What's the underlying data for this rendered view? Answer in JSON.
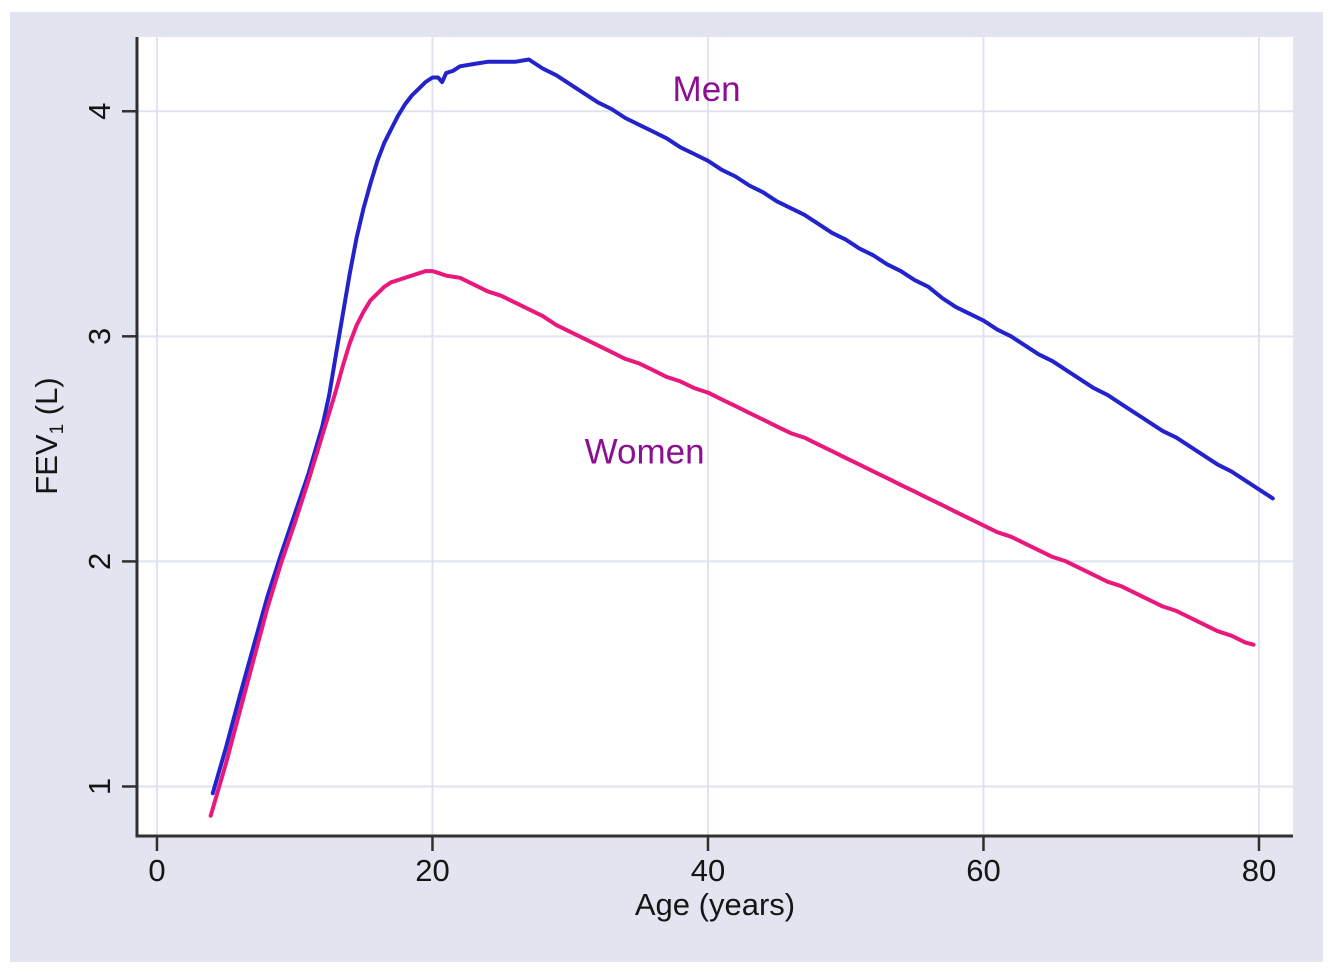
{
  "figure": {
    "page_background": "#ffffff",
    "canvas_color": "#e2e5ef",
    "plot_background": "#ffffff",
    "grid_color": "#dfe3ef",
    "axis_color": "#303030",
    "tick_text_color": "#151515",
    "annotation_color": "#8c0f92"
  },
  "chart_data": {
    "type": "line",
    "title": "",
    "xlabel": "Age (years)",
    "ylabel": "FEV1 (L)",
    "ylabel_rich": {
      "base": "FEV",
      "subscript": "1",
      "rest": " (L)"
    },
    "xlim": [
      -1.45,
      82.47
    ],
    "ylim": [
      0.78,
      4.33
    ],
    "xticks": [
      0,
      20,
      40,
      60,
      80
    ],
    "yticks": [
      1,
      2,
      3,
      4
    ],
    "grid": "both",
    "legend_position": "inline-annotations",
    "annotations": [
      {
        "label": "Men",
        "x": 39.9,
        "y": 4.1
      },
      {
        "label": "Women",
        "x": 35.4,
        "y": 2.49
      }
    ],
    "series": [
      {
        "name": "Men",
        "color": "#2323cc",
        "points": [
          [
            4.05,
            0.97
          ],
          [
            5,
            1.17
          ],
          [
            6,
            1.4
          ],
          [
            7,
            1.62
          ],
          [
            8,
            1.84
          ],
          [
            9,
            2.03
          ],
          [
            10,
            2.21
          ],
          [
            11,
            2.39
          ],
          [
            12,
            2.6
          ],
          [
            12.5,
            2.74
          ],
          [
            13,
            2.92
          ],
          [
            13.5,
            3.1
          ],
          [
            14,
            3.28
          ],
          [
            14.5,
            3.44
          ],
          [
            15,
            3.57
          ],
          [
            15.5,
            3.68
          ],
          [
            16,
            3.78
          ],
          [
            16.5,
            3.86
          ],
          [
            17,
            3.92
          ],
          [
            17.5,
            3.98
          ],
          [
            18,
            4.03
          ],
          [
            18.5,
            4.07
          ],
          [
            19,
            4.1
          ],
          [
            19.5,
            4.13
          ],
          [
            20,
            4.15
          ],
          [
            20.4,
            4.15
          ],
          [
            20.7,
            4.13
          ],
          [
            21,
            4.17
          ],
          [
            21.5,
            4.18
          ],
          [
            22,
            4.2
          ],
          [
            23,
            4.21
          ],
          [
            24,
            4.22
          ],
          [
            25,
            4.22
          ],
          [
            26,
            4.22
          ],
          [
            27,
            4.23
          ],
          [
            28,
            4.19
          ],
          [
            29,
            4.16
          ],
          [
            30,
            4.12
          ],
          [
            31,
            4.08
          ],
          [
            32,
            4.04
          ],
          [
            33,
            4.01
          ],
          [
            34,
            3.97
          ],
          [
            35,
            3.94
          ],
          [
            36,
            3.91
          ],
          [
            37,
            3.88
          ],
          [
            38,
            3.84
          ],
          [
            39,
            3.81
          ],
          [
            40,
            3.78
          ],
          [
            41,
            3.74
          ],
          [
            42,
            3.71
          ],
          [
            43,
            3.67
          ],
          [
            44,
            3.64
          ],
          [
            45,
            3.6
          ],
          [
            46,
            3.57
          ],
          [
            47,
            3.54
          ],
          [
            48,
            3.5
          ],
          [
            49,
            3.46
          ],
          [
            50,
            3.43
          ],
          [
            51,
            3.39
          ],
          [
            52,
            3.36
          ],
          [
            53,
            3.32
          ],
          [
            54,
            3.29
          ],
          [
            55,
            3.25
          ],
          [
            56,
            3.22
          ],
          [
            57,
            3.17
          ],
          [
            58,
            3.13
          ],
          [
            59,
            3.1
          ],
          [
            60,
            3.07
          ],
          [
            61,
            3.03
          ],
          [
            62,
            3.0
          ],
          [
            63,
            2.96
          ],
          [
            64,
            2.92
          ],
          [
            65,
            2.89
          ],
          [
            66,
            2.85
          ],
          [
            67,
            2.81
          ],
          [
            68,
            2.77
          ],
          [
            69,
            2.74
          ],
          [
            70,
            2.7
          ],
          [
            71,
            2.66
          ],
          [
            72,
            2.62
          ],
          [
            73,
            2.58
          ],
          [
            74,
            2.55
          ],
          [
            75,
            2.51
          ],
          [
            76,
            2.47
          ],
          [
            77,
            2.43
          ],
          [
            78,
            2.4
          ],
          [
            79,
            2.36
          ],
          [
            80,
            2.32
          ],
          [
            81,
            2.28
          ]
        ]
      },
      {
        "name": "Women",
        "color": "#e8187c",
        "points": [
          [
            3.9,
            0.87
          ],
          [
            5,
            1.1
          ],
          [
            6,
            1.33
          ],
          [
            7,
            1.56
          ],
          [
            8,
            1.79
          ],
          [
            9,
            1.99
          ],
          [
            10,
            2.17
          ],
          [
            11,
            2.36
          ],
          [
            12,
            2.56
          ],
          [
            12.5,
            2.66
          ],
          [
            13,
            2.76
          ],
          [
            13.5,
            2.87
          ],
          [
            14,
            2.97
          ],
          [
            14.5,
            3.05
          ],
          [
            15,
            3.11
          ],
          [
            15.5,
            3.16
          ],
          [
            16,
            3.19
          ],
          [
            16.5,
            3.22
          ],
          [
            17,
            3.24
          ],
          [
            17.5,
            3.25
          ],
          [
            18,
            3.26
          ],
          [
            18.5,
            3.27
          ],
          [
            19,
            3.28
          ],
          [
            19.5,
            3.29
          ],
          [
            20,
            3.29
          ],
          [
            20.5,
            3.28
          ],
          [
            21,
            3.27
          ],
          [
            22,
            3.26
          ],
          [
            23,
            3.23
          ],
          [
            24,
            3.2
          ],
          [
            25,
            3.18
          ],
          [
            26,
            3.15
          ],
          [
            27,
            3.12
          ],
          [
            28,
            3.09
          ],
          [
            29,
            3.05
          ],
          [
            30,
            3.02
          ],
          [
            31,
            2.99
          ],
          [
            32,
            2.96
          ],
          [
            33,
            2.93
          ],
          [
            34,
            2.9
          ],
          [
            35,
            2.88
          ],
          [
            36,
            2.85
          ],
          [
            37,
            2.82
          ],
          [
            38,
            2.8
          ],
          [
            39,
            2.77
          ],
          [
            40,
            2.75
          ],
          [
            41,
            2.72
          ],
          [
            42,
            2.69
          ],
          [
            43,
            2.66
          ],
          [
            44,
            2.63
          ],
          [
            45,
            2.6
          ],
          [
            46,
            2.57
          ],
          [
            47,
            2.55
          ],
          [
            48,
            2.52
          ],
          [
            49,
            2.49
          ],
          [
            50,
            2.46
          ],
          [
            51,
            2.43
          ],
          [
            52,
            2.4
          ],
          [
            53,
            2.37
          ],
          [
            54,
            2.34
          ],
          [
            55,
            2.31
          ],
          [
            56,
            2.28
          ],
          [
            57,
            2.25
          ],
          [
            58,
            2.22
          ],
          [
            59,
            2.19
          ],
          [
            60,
            2.16
          ],
          [
            61,
            2.13
          ],
          [
            62,
            2.11
          ],
          [
            63,
            2.08
          ],
          [
            64,
            2.05
          ],
          [
            65,
            2.02
          ],
          [
            66,
            2.0
          ],
          [
            67,
            1.97
          ],
          [
            68,
            1.94
          ],
          [
            69,
            1.91
          ],
          [
            70,
            1.89
          ],
          [
            71,
            1.86
          ],
          [
            72,
            1.83
          ],
          [
            73,
            1.8
          ],
          [
            74,
            1.78
          ],
          [
            75,
            1.75
          ],
          [
            76,
            1.72
          ],
          [
            77,
            1.69
          ],
          [
            78,
            1.67
          ],
          [
            79,
            1.64
          ],
          [
            79.6,
            1.63
          ]
        ]
      }
    ]
  }
}
